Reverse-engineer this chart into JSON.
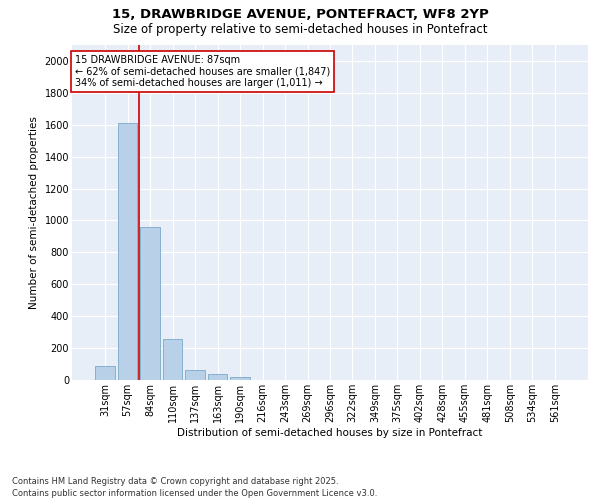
{
  "title_line1": "15, DRAWBRIDGE AVENUE, PONTEFRACT, WF8 2YP",
  "title_line2": "Size of property relative to semi-detached houses in Pontefract",
  "xlabel": "Distribution of semi-detached houses by size in Pontefract",
  "ylabel": "Number of semi-detached properties",
  "categories": [
    "31sqm",
    "57sqm",
    "84sqm",
    "110sqm",
    "137sqm",
    "163sqm",
    "190sqm",
    "216sqm",
    "243sqm",
    "269sqm",
    "296sqm",
    "322sqm",
    "349sqm",
    "375sqm",
    "402sqm",
    "428sqm",
    "455sqm",
    "481sqm",
    "508sqm",
    "534sqm",
    "561sqm"
  ],
  "values": [
    90,
    1610,
    960,
    255,
    65,
    40,
    20,
    0,
    0,
    0,
    0,
    0,
    0,
    0,
    0,
    0,
    0,
    0,
    0,
    0,
    0
  ],
  "bar_color": "#b8d0e8",
  "bar_edge_color": "#7aaac8",
  "property_label": "15 DRAWBRIDGE AVENUE: 87sqm",
  "pct_smaller": "62%",
  "pct_larger": "34%",
  "count_smaller": "1,847",
  "count_larger": "1,011",
  "vline_x_index": 1.5,
  "annotation_box_color": "#cc0000",
  "ylim": [
    0,
    2100
  ],
  "yticks": [
    0,
    200,
    400,
    600,
    800,
    1000,
    1200,
    1400,
    1600,
    1800,
    2000
  ],
  "background_color": "#e8eef7",
  "grid_color": "#ffffff",
  "footer": "Contains HM Land Registry data © Crown copyright and database right 2025.\nContains public sector information licensed under the Open Government Licence v3.0.",
  "title_fontsize": 9.5,
  "subtitle_fontsize": 8.5,
  "axis_label_fontsize": 7.5,
  "tick_fontsize": 7,
  "annotation_fontsize": 7,
  "footer_fontsize": 6
}
